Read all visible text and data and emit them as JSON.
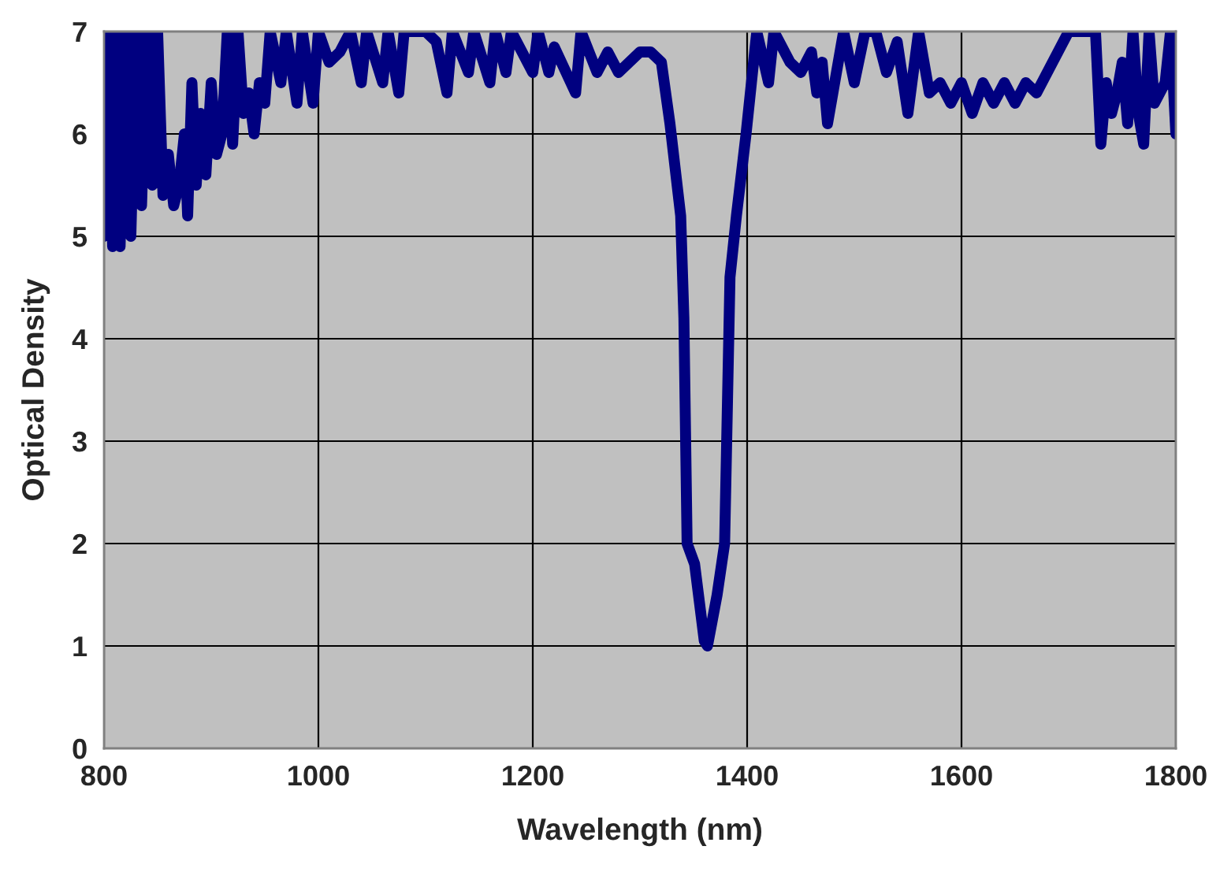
{
  "chart_data": {
    "type": "line",
    "xlabel": "Wavelength (nm)",
    "ylabel": "Optical Density",
    "xlim": [
      800,
      1800
    ],
    "ylim": [
      0,
      7
    ],
    "xticks": [
      800,
      1000,
      1200,
      1400,
      1600,
      1800
    ],
    "yticks": [
      0,
      1,
      2,
      3,
      4,
      5,
      6,
      7
    ],
    "grid": true,
    "marker": "none",
    "line_style": "solid",
    "series": [
      {
        "color": "#000080",
        "x": [
          800,
          805,
          808,
          812,
          815,
          820,
          825,
          830,
          835,
          840,
          845,
          850,
          855,
          860,
          865,
          870,
          875,
          878,
          882,
          886,
          890,
          895,
          900,
          905,
          910,
          915,
          920,
          925,
          930,
          935,
          940,
          945,
          950,
          955,
          965,
          970,
          980,
          985,
          995,
          1000,
          1010,
          1020,
          1030,
          1040,
          1045,
          1060,
          1065,
          1075,
          1080,
          1090,
          1100,
          1110,
          1120,
          1125,
          1140,
          1145,
          1160,
          1165,
          1175,
          1180,
          1200,
          1205,
          1215,
          1220,
          1240,
          1245,
          1260,
          1270,
          1280,
          1290,
          1300,
          1310,
          1320,
          1328,
          1338,
          1341,
          1344,
          1351,
          1360,
          1363,
          1372,
          1379,
          1384,
          1390,
          1399,
          1404,
          1409,
          1420,
          1425,
          1440,
          1450,
          1460,
          1465,
          1470,
          1475,
          1480,
          1490,
          1500,
          1510,
          1520,
          1530,
          1540,
          1550,
          1560,
          1570,
          1580,
          1590,
          1600,
          1610,
          1620,
          1630,
          1640,
          1650,
          1660,
          1670,
          1680,
          1690,
          1700,
          1710,
          1725,
          1730,
          1735,
          1740,
          1745,
          1750,
          1755,
          1760,
          1765,
          1770,
          1775,
          1780,
          1790,
          1795,
          1800
        ],
        "values": [
          5.0,
          7,
          4.9,
          7,
          4.9,
          7,
          5.0,
          7,
          5.3,
          7,
          5.5,
          7,
          5.4,
          5.8,
          5.3,
          5.5,
          6.0,
          5.2,
          6.5,
          5.5,
          6.2,
          5.6,
          6.5,
          5.8,
          6.0,
          7,
          5.9,
          7,
          6.2,
          6.4,
          6.0,
          6.5,
          6.3,
          7,
          6.5,
          7,
          6.3,
          7,
          6.3,
          7,
          6.7,
          6.8,
          7,
          6.5,
          7,
          6.5,
          7,
          6.4,
          7,
          7,
          7,
          6.9,
          6.4,
          7,
          6.6,
          7,
          6.5,
          7,
          6.6,
          7,
          6.6,
          7,
          6.6,
          6.85,
          6.4,
          7,
          6.6,
          6.8,
          6.6,
          6.7,
          6.8,
          6.8,
          6.7,
          6.1,
          5.2,
          4.2,
          2.0,
          1.8,
          1.05,
          1.0,
          1.5,
          2.0,
          4.6,
          5.2,
          6.0,
          6.5,
          7,
          6.5,
          7,
          6.7,
          6.6,
          6.8,
          6.4,
          6.7,
          6.1,
          6.4,
          7,
          6.5,
          7,
          7,
          6.6,
          6.9,
          6.2,
          7,
          6.4,
          6.5,
          6.3,
          6.5,
          6.2,
          6.5,
          6.3,
          6.5,
          6.3,
          6.5,
          6.4,
          6.6,
          6.8,
          7,
          7,
          7,
          5.9,
          6.5,
          6.2,
          6.4,
          6.7,
          6.1,
          7,
          6.2,
          5.9,
          7,
          6.3,
          6.5,
          7,
          6.0
        ]
      }
    ]
  }
}
